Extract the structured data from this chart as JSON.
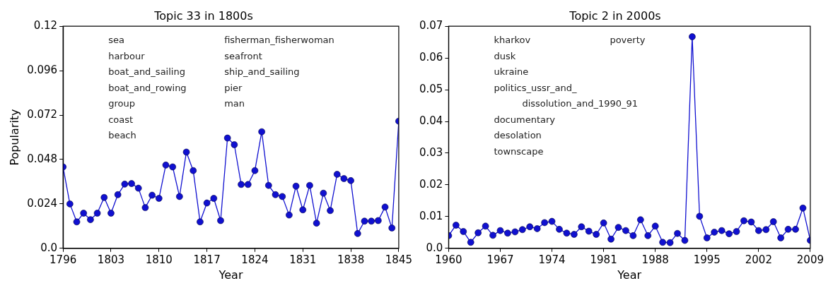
{
  "chart_data": [
    {
      "type": "line",
      "title": "Topic 33 in 1800s",
      "xlabel": "Year",
      "ylabel": "Popularity",
      "x": [
        1796,
        1797,
        1798,
        1799,
        1800,
        1801,
        1802,
        1803,
        1804,
        1805,
        1806,
        1807,
        1808,
        1809,
        1810,
        1811,
        1812,
        1813,
        1814,
        1815,
        1816,
        1817,
        1818,
        1819,
        1820,
        1821,
        1822,
        1823,
        1824,
        1825,
        1826,
        1827,
        1828,
        1829,
        1830,
        1831,
        1832,
        1833,
        1834,
        1835,
        1836,
        1837,
        1838,
        1839,
        1840,
        1841,
        1842,
        1843,
        1844,
        1845
      ],
      "series": [
        {
          "color": "#1010d0",
          "values": [
            0.044,
            0.024,
            0.0143,
            0.019,
            0.0155,
            0.019,
            0.0275,
            0.019,
            0.029,
            0.0347,
            0.035,
            0.0325,
            0.022,
            0.0287,
            0.027,
            0.045,
            0.044,
            0.028,
            0.052,
            0.042,
            0.0143,
            0.0245,
            0.027,
            0.015,
            0.0596,
            0.056,
            0.0345,
            0.0345,
            0.042,
            0.063,
            0.034,
            0.029,
            0.028,
            0.018,
            0.0336,
            0.0208,
            0.034,
            0.0136,
            0.0298,
            0.0204,
            0.04,
            0.0377,
            0.0366,
            0.008,
            0.0147,
            0.0147,
            0.015,
            0.0223,
            0.011,
            0.0687
          ]
        }
      ],
      "xlim": [
        1796,
        1845
      ],
      "xticks": [
        1796,
        1803,
        1810,
        1817,
        1824,
        1831,
        1838,
        1845
      ],
      "ylim": [
        0,
        0.12
      ],
      "yticks": [
        {
          "value": 0,
          "label": "0.0"
        },
        0.024,
        0.048,
        0.072,
        0.096,
        0.12
      ],
      "grid": false,
      "marker": "circle",
      "line_style": "solid",
      "annotations": [
        "sea",
        "harbour",
        "boat_and_sailing",
        "boat_and_rowing",
        "group",
        "coast",
        "beach",
        "fisherman_fisherwoman",
        "seafront",
        "ship_and_sailing",
        "pier",
        "man"
      ]
    },
    {
      "type": "line",
      "title": "Topic 2 in 2000s",
      "xlabel": "Year",
      "x": [
        1960,
        1961,
        1962,
        1963,
        1964,
        1965,
        1966,
        1967,
        1968,
        1969,
        1970,
        1971,
        1972,
        1973,
        1974,
        1975,
        1976,
        1977,
        1978,
        1979,
        1980,
        1981,
        1982,
        1983,
        1984,
        1985,
        1986,
        1987,
        1988,
        1989,
        1990,
        1991,
        1992,
        1993,
        1994,
        1995,
        1996,
        1997,
        1998,
        1999,
        2000,
        2001,
        2002,
        2003,
        2004,
        2005,
        2006,
        2007,
        2008,
        2009
      ],
      "series": [
        {
          "color": "#1010d0",
          "values": [
            0.004,
            0.0073,
            0.0053,
            0.0019,
            0.0049,
            0.007,
            0.0041,
            0.0056,
            0.0048,
            0.0052,
            0.0059,
            0.0068,
            0.0062,
            0.0081,
            0.0085,
            0.006,
            0.0048,
            0.0044,
            0.0068,
            0.0054,
            0.0044,
            0.008,
            0.0029,
            0.0066,
            0.0056,
            0.004,
            0.009,
            0.004,
            0.007,
            0.0019,
            0.0018,
            0.0047,
            0.0025,
            0.0667,
            0.0101,
            0.0033,
            0.0051,
            0.0056,
            0.0046,
            0.0053,
            0.0087,
            0.0083,
            0.0056,
            0.0059,
            0.0084,
            0.0033,
            0.006,
            0.006,
            0.0127,
            0.0025
          ]
        }
      ],
      "xlim": [
        1960,
        2009
      ],
      "xticks": [
        1960,
        1967,
        1974,
        1981,
        1988,
        1995,
        2002,
        2009
      ],
      "ylim": [
        0,
        0.07
      ],
      "yticks": [
        {
          "value": 0,
          "label": "0.0"
        },
        0.01,
        0.02,
        0.03,
        0.04,
        0.05,
        0.06,
        0.07
      ],
      "grid": false,
      "marker": "circle",
      "line_style": "solid",
      "annotations": [
        "kharkov",
        "dusk",
        "ukraine",
        "politics_ussr_and_\ndissolution_and_1990_91",
        "documentary",
        "desolation",
        "townscape",
        "poverty"
      ]
    }
  ]
}
